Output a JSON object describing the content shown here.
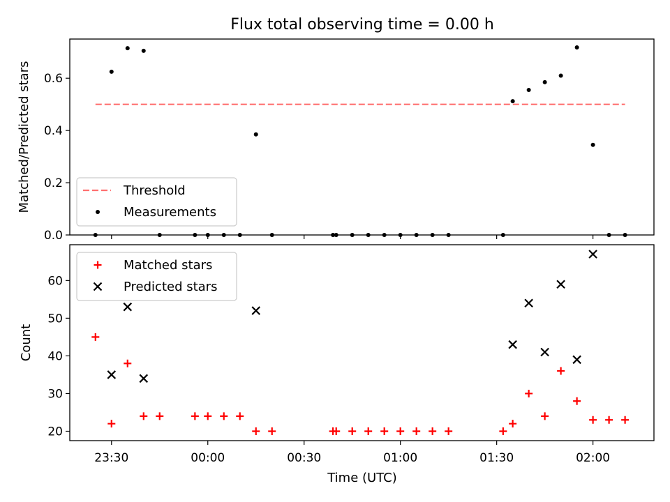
{
  "figure": {
    "title": "Flux total observing time = 0.00 h",
    "xlabel": "Time (UTC)",
    "xticks": [
      "23:30",
      "00:00",
      "00:30",
      "01:00",
      "01:30",
      "02:00"
    ]
  },
  "chart_data": [
    {
      "type": "scatter",
      "ylabel": "Matched/Predicted stars",
      "ylim": [
        0,
        0.75
      ],
      "yticks": [
        "0.0",
        "0.2",
        "0.4",
        "0.6"
      ],
      "xlim_minutes_from_2330": [
        -13,
        169
      ],
      "legend_position": "lower-left",
      "threshold": {
        "name": "Threshold",
        "value": 0.5,
        "x_from": "23:25",
        "x_to": "02:10",
        "color": "#ff7070",
        "style": "dashed"
      },
      "series": [
        {
          "name": "Measurements",
          "color": "#000000",
          "points": [
            [
              "23:25",
              0.0
            ],
            [
              "23:30",
              0.625
            ],
            [
              "23:35",
              0.715
            ],
            [
              "23:40",
              0.705
            ],
            [
              "23:45",
              0.0
            ],
            [
              "23:56",
              0.0
            ],
            [
              "00:00",
              0.0
            ],
            [
              "00:05",
              0.0
            ],
            [
              "00:10",
              0.0
            ],
            [
              "00:15",
              0.385
            ],
            [
              "00:20",
              0.0
            ],
            [
              "00:39",
              0.0
            ],
            [
              "00:40",
              0.0
            ],
            [
              "00:45",
              0.0
            ],
            [
              "00:50",
              0.0
            ],
            [
              "00:55",
              0.0
            ],
            [
              "01:00",
              0.0
            ],
            [
              "01:05",
              0.0
            ],
            [
              "01:10",
              0.0
            ],
            [
              "01:15",
              0.0
            ],
            [
              "01:32",
              0.0
            ],
            [
              "01:35",
              0.512
            ],
            [
              "01:40",
              0.555
            ],
            [
              "01:45",
              0.585
            ],
            [
              "01:50",
              0.61
            ],
            [
              "01:55",
              0.718
            ],
            [
              "02:00",
              0.345
            ],
            [
              "02:05",
              0.0
            ],
            [
              "02:10",
              0.0
            ]
          ]
        }
      ]
    },
    {
      "type": "scatter",
      "ylabel": "Count",
      "ylim": [
        17.5,
        69.5
      ],
      "yticks": [
        "20",
        "30",
        "40",
        "50",
        "60"
      ],
      "xlim_minutes_from_2330": [
        -13,
        169
      ],
      "legend_position": "upper-left",
      "series": [
        {
          "name": "Matched stars",
          "marker": "plus",
          "color": "#ff0000",
          "points": [
            [
              "23:25",
              45
            ],
            [
              "23:30",
              22
            ],
            [
              "23:35",
              38
            ],
            [
              "23:40",
              24
            ],
            [
              "23:45",
              24
            ],
            [
              "23:56",
              24
            ],
            [
              "00:00",
              24
            ],
            [
              "00:05",
              24
            ],
            [
              "00:10",
              24
            ],
            [
              "00:15",
              20
            ],
            [
              "00:20",
              20
            ],
            [
              "00:39",
              20
            ],
            [
              "00:40",
              20
            ],
            [
              "00:45",
              20
            ],
            [
              "00:50",
              20
            ],
            [
              "00:55",
              20
            ],
            [
              "01:00",
              20
            ],
            [
              "01:05",
              20
            ],
            [
              "01:10",
              20
            ],
            [
              "01:15",
              20
            ],
            [
              "01:32",
              20
            ],
            [
              "01:35",
              22
            ],
            [
              "01:40",
              30
            ],
            [
              "01:45",
              24
            ],
            [
              "01:50",
              36
            ],
            [
              "01:55",
              28
            ],
            [
              "02:00",
              23
            ],
            [
              "02:05",
              23
            ],
            [
              "02:10",
              23
            ]
          ]
        },
        {
          "name": "Predicted stars",
          "marker": "x",
          "color": "#000000",
          "points": [
            [
              "23:30",
              35
            ],
            [
              "23:35",
              53
            ],
            [
              "23:40",
              34
            ],
            [
              "00:15",
              52
            ],
            [
              "01:35",
              43
            ],
            [
              "01:40",
              54
            ],
            [
              "01:45",
              41
            ],
            [
              "01:50",
              59
            ],
            [
              "01:55",
              39
            ],
            [
              "02:00",
              67
            ]
          ]
        }
      ]
    }
  ]
}
